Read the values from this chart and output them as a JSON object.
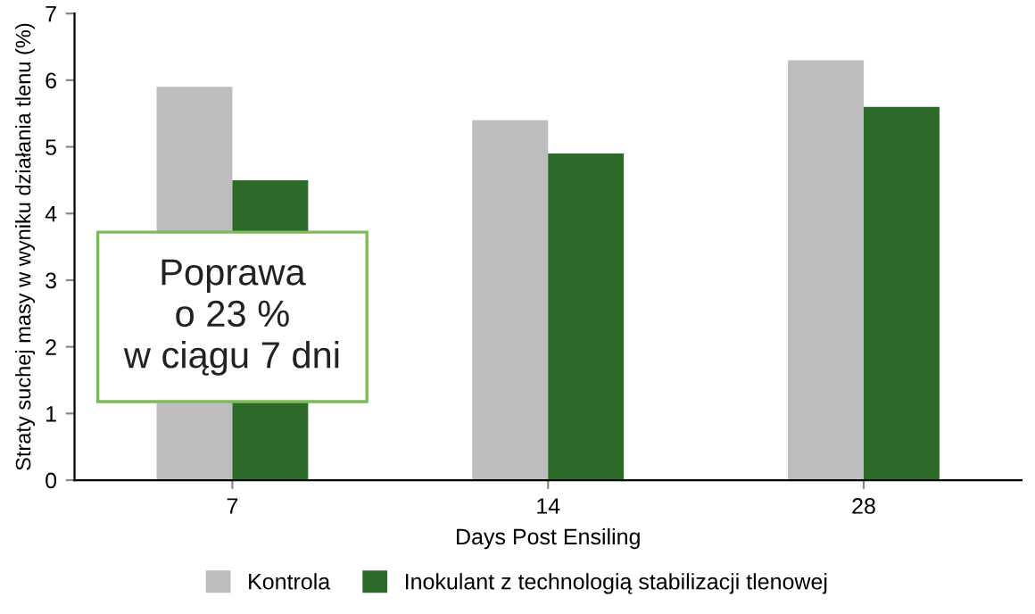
{
  "chart_data": {
    "type": "bar",
    "xlabel": "Days Post Ensiling",
    "ylabel": "Straty suchej masy w wyniku działania tlenu (%)",
    "categories": [
      "7",
      "14",
      "28"
    ],
    "series": [
      {
        "name": "Kontrola",
        "color": "#bdbdc0",
        "values": [
          5.9,
          5.4,
          6.3
        ]
      },
      {
        "name": "Inokulant z technologią stabilizacji tlenowej",
        "color": "#2d6a2a",
        "values": [
          4.5,
          4.9,
          5.6
        ]
      }
    ],
    "ylim": [
      0,
      7
    ],
    "yticks": [
      0,
      1,
      2,
      3,
      4,
      5,
      6,
      7
    ],
    "grid": false,
    "legend": "bottom",
    "annotations": [
      "Poprawa\no 23 %\nw ciągu 7 dni"
    ]
  }
}
